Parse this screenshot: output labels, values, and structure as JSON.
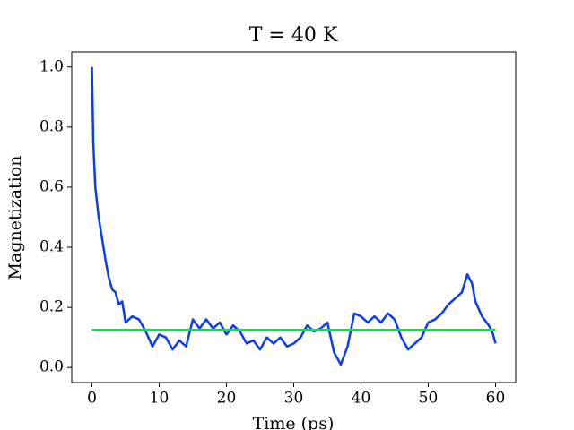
{
  "chart_data": {
    "type": "line",
    "title": "T = 40 K",
    "x_label": "Time (ps)",
    "y_label": "Magnetization",
    "xlim": [
      -3,
      63
    ],
    "ylim": [
      -0.05,
      1.05
    ],
    "xticks": [
      0,
      10,
      20,
      30,
      40,
      50,
      60
    ],
    "yticks": [
      {
        "value": 0,
        "label": "0.0"
      },
      0.2,
      0.4,
      0.6,
      0.8,
      {
        "value": 1,
        "label": "1.0"
      }
    ],
    "grid": false,
    "series": [
      {
        "color": "#0a3cf0",
        "x": [
          0,
          0.2,
          0.5,
          1,
          1.5,
          2,
          2.5,
          3,
          3.5,
          4,
          4.5,
          5,
          6,
          7,
          8,
          9,
          10,
          11,
          12,
          13,
          14,
          15,
          16,
          17,
          18,
          19,
          20,
          21,
          22,
          23,
          24,
          25,
          26,
          27,
          28,
          29,
          30,
          31,
          32,
          33,
          34,
          35,
          36,
          37,
          38,
          39,
          40,
          41,
          42,
          43,
          44,
          45,
          46,
          47,
          48,
          49,
          50,
          51,
          52,
          53,
          54,
          55,
          55.8,
          56.5,
          57,
          58,
          59,
          59.5,
          60
        ],
        "values": [
          1.0,
          0.75,
          0.6,
          0.5,
          0.43,
          0.36,
          0.3,
          0.26,
          0.25,
          0.21,
          0.22,
          0.15,
          0.17,
          0.16,
          0.12,
          0.07,
          0.11,
          0.1,
          0.06,
          0.09,
          0.07,
          0.16,
          0.13,
          0.16,
          0.13,
          0.15,
          0.11,
          0.14,
          0.12,
          0.08,
          0.09,
          0.06,
          0.1,
          0.08,
          0.1,
          0.07,
          0.08,
          0.1,
          0.14,
          0.12,
          0.13,
          0.15,
          0.05,
          0.01,
          0.07,
          0.18,
          0.17,
          0.15,
          0.17,
          0.15,
          0.18,
          0.16,
          0.1,
          0.06,
          0.08,
          0.1,
          0.15,
          0.16,
          0.18,
          0.21,
          0.23,
          0.25,
          0.31,
          0.28,
          0.22,
          0.17,
          0.14,
          0.12,
          0.08
        ]
      },
      {
        "color": "#00e640",
        "x": [
          0,
          60
        ],
        "values": [
          0.125,
          0.125
        ]
      }
    ]
  }
}
